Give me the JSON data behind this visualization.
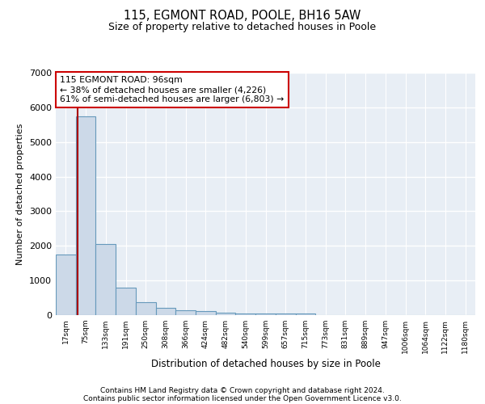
{
  "title_line1": "115, EGMONT ROAD, POOLE, BH16 5AW",
  "title_line2": "Size of property relative to detached houses in Poole",
  "xlabel": "Distribution of detached houses by size in Poole",
  "ylabel": "Number of detached properties",
  "footnote1": "Contains HM Land Registry data © Crown copyright and database right 2024.",
  "footnote2": "Contains public sector information licensed under the Open Government Licence v3.0.",
  "property_label": "115 EGMONT ROAD: 96sqm",
  "annotation_line2": "← 38% of detached houses are smaller (4,226)",
  "annotation_line3": "61% of semi-detached houses are larger (6,803) →",
  "bar_categories": [
    "17sqm",
    "75sqm",
    "133sqm",
    "191sqm",
    "250sqm",
    "308sqm",
    "366sqm",
    "424sqm",
    "482sqm",
    "540sqm",
    "599sqm",
    "657sqm",
    "715sqm",
    "773sqm",
    "831sqm",
    "889sqm",
    "947sqm",
    "1006sqm",
    "1064sqm",
    "1122sqm",
    "1180sqm"
  ],
  "bar_values": [
    1750,
    5750,
    2050,
    800,
    370,
    200,
    130,
    110,
    80,
    55,
    50,
    50,
    50,
    0,
    0,
    0,
    0,
    0,
    0,
    0,
    0
  ],
  "bar_color": "#ccd9e8",
  "bar_edge_color": "#6699bb",
  "property_line_x": 0.575,
  "ylim": [
    0,
    7000
  ],
  "yticks": [
    0,
    1000,
    2000,
    3000,
    4000,
    5000,
    6000,
    7000
  ],
  "background_color": "#ffffff",
  "plot_bg_color": "#e8eef5",
  "grid_color": "#ffffff",
  "red_line_color": "#aa0000",
  "annotation_box_color": "#ffffff",
  "annotation_box_edge": "#cc0000"
}
